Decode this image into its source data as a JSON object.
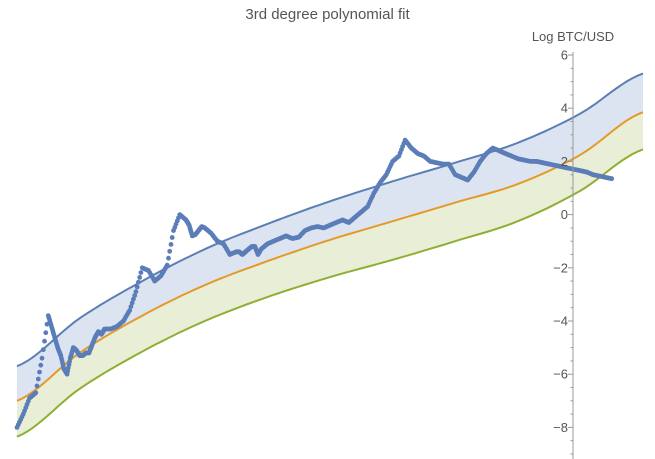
{
  "chart_data": {
    "type": "scatter",
    "title": "3rd degree polynomial fit",
    "xlabel": "",
    "ylabel": "Log BTC/USD",
    "x_domain": [
      0,
      1
    ],
    "ylim": [
      -9,
      6
    ],
    "y_ticks": [
      6,
      4,
      2,
      0,
      -2,
      -4,
      -6,
      -8
    ],
    "y_tick_labels": [
      "6",
      "4",
      "2",
      "0",
      "−2",
      "−4",
      "−6",
      "−8"
    ],
    "grid": false,
    "legend": "none",
    "fit_curves": [
      {
        "role": "upper",
        "color": "#5a7fb4",
        "x": [
          0,
          0.1,
          0.2,
          0.3,
          0.4,
          0.5,
          0.6,
          0.7,
          0.8,
          0.9,
          1.0
        ],
        "y": [
          -5.7,
          -3.9,
          -2.5,
          -1.3,
          -0.35,
          0.5,
          1.25,
          1.95,
          2.7,
          3.8,
          5.3
        ]
      },
      {
        "role": "middle",
        "color": "#e39a2a",
        "x": [
          0,
          0.1,
          0.2,
          0.3,
          0.4,
          0.5,
          0.6,
          0.7,
          0.8,
          0.9,
          1.0
        ],
        "y": [
          -7.0,
          -5.2,
          -3.8,
          -2.65,
          -1.75,
          -0.95,
          -0.25,
          0.45,
          1.15,
          2.25,
          3.85
        ]
      },
      {
        "role": "lower",
        "color": "#8db033",
        "x": [
          0,
          0.1,
          0.2,
          0.3,
          0.4,
          0.5,
          0.6,
          0.7,
          0.8,
          0.9,
          1.0
        ],
        "y": [
          -8.35,
          -6.55,
          -5.15,
          -4.0,
          -3.1,
          -2.35,
          -1.7,
          -1.0,
          -0.25,
          0.9,
          2.45
        ]
      }
    ],
    "bands": [
      {
        "between": [
          "upper",
          "middle"
        ],
        "color": "#dde4f1"
      },
      {
        "between": [
          "middle",
          "lower"
        ],
        "color": "#e9eed6"
      }
    ],
    "series": [
      {
        "color": "#5b7db8",
        "x": [
          0.0,
          0.01,
          0.02,
          0.03,
          0.04,
          0.05,
          0.055,
          0.06,
          0.065,
          0.07,
          0.075,
          0.08,
          0.085,
          0.09,
          0.095,
          0.1,
          0.105,
          0.11,
          0.115,
          0.12,
          0.125,
          0.13,
          0.135,
          0.14,
          0.15,
          0.16,
          0.17,
          0.18,
          0.19,
          0.2,
          0.21,
          0.22,
          0.23,
          0.24,
          0.25,
          0.26,
          0.27,
          0.275,
          0.28,
          0.285,
          0.29,
          0.295,
          0.3,
          0.31,
          0.32,
          0.33,
          0.34,
          0.35,
          0.355,
          0.36,
          0.365,
          0.37,
          0.375,
          0.38,
          0.385,
          0.39,
          0.4,
          0.41,
          0.42,
          0.43,
          0.44,
          0.45,
          0.46,
          0.47,
          0.48,
          0.49,
          0.5,
          0.51,
          0.52,
          0.53,
          0.54,
          0.55,
          0.56,
          0.57,
          0.58,
          0.59,
          0.6,
          0.61,
          0.62,
          0.63,
          0.64,
          0.65,
          0.66,
          0.67,
          0.68,
          0.69,
          0.7,
          0.71,
          0.72,
          0.73,
          0.74,
          0.75,
          0.76,
          0.77,
          0.78,
          0.79,
          0.8,
          0.81,
          0.82,
          0.83,
          0.84,
          0.85,
          0.86,
          0.87,
          0.88,
          0.89,
          0.9,
          0.91,
          0.92,
          0.93,
          0.94,
          0.95
        ],
        "y": [
          -8.0,
          -7.5,
          -6.9,
          -6.7,
          -5.4,
          -3.8,
          -4.2,
          -4.6,
          -5.0,
          -5.3,
          -5.8,
          -6.0,
          -5.4,
          -5.0,
          -5.1,
          -5.3,
          -5.3,
          -5.2,
          -5.2,
          -4.9,
          -4.6,
          -4.4,
          -4.5,
          -4.3,
          -4.3,
          -4.2,
          -4.0,
          -3.6,
          -2.9,
          -2.0,
          -2.1,
          -2.5,
          -2.3,
          -1.9,
          -0.6,
          0.0,
          -0.2,
          -0.4,
          -0.8,
          -0.75,
          -0.6,
          -0.45,
          -0.5,
          -0.7,
          -1.0,
          -1.1,
          -1.5,
          -1.4,
          -1.4,
          -1.5,
          -1.4,
          -1.3,
          -1.2,
          -1.2,
          -1.5,
          -1.3,
          -1.1,
          -1.0,
          -0.9,
          -0.8,
          -0.9,
          -0.85,
          -0.6,
          -0.5,
          -0.45,
          -0.5,
          -0.4,
          -0.3,
          -0.2,
          -0.3,
          -0.1,
          0.1,
          0.3,
          0.8,
          1.2,
          1.5,
          2.0,
          2.2,
          2.8,
          2.5,
          2.3,
          2.2,
          2.0,
          1.95,
          1.9,
          1.9,
          1.5,
          1.4,
          1.3,
          1.6,
          2.0,
          2.3,
          2.5,
          2.4,
          2.3,
          2.2,
          2.1,
          2.05,
          2.0,
          2.0,
          1.95,
          1.9,
          1.85,
          1.8,
          1.75,
          1.7,
          1.65,
          1.6,
          1.5,
          1.45,
          1.4,
          1.35
        ]
      }
    ]
  }
}
